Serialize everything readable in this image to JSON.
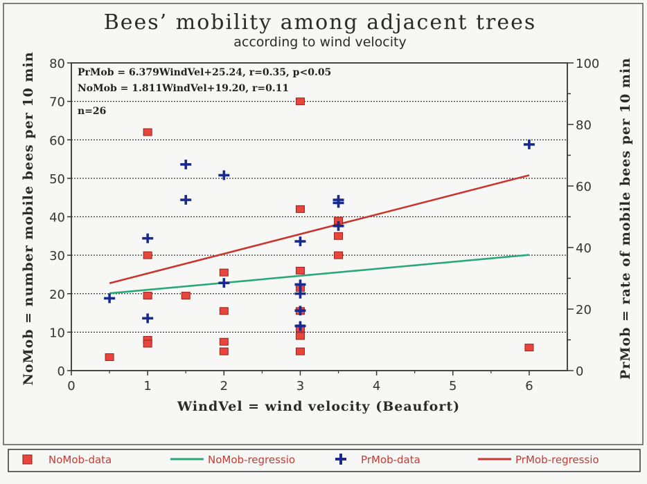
{
  "chart_data": {
    "type": "scatter",
    "title": "Bees’ mobility among adjacent trees",
    "subtitle": "according to wind velocity",
    "xlabel": "WindVel = wind velocity (Beaufort)",
    "ylabel_left": "NoMob = number mobile bees per 10 min",
    "ylabel_right": "PrMob = rate of mobile bees per 10 min",
    "xlim": [
      0,
      6.5
    ],
    "ylim_left": [
      0,
      80
    ],
    "ylim_right": [
      0,
      100
    ],
    "x_ticks": [
      "0",
      "1",
      "2",
      "3",
      "4",
      "5",
      "6"
    ],
    "y_ticks_left": [
      "0",
      "10",
      "20",
      "30",
      "40",
      "50",
      "60",
      "70",
      "80"
    ],
    "y_ticks_right": [
      "0",
      "20",
      "40",
      "60",
      "80",
      "100"
    ],
    "grid": "horizontal dotted",
    "annotations": [
      "PrMob = 6.379WindVel+25.24, r=0.35, p<0.05",
      "NoMob = 1.811WindVel+19.20, r=0.11",
      "n=26"
    ],
    "series": [
      {
        "name": "NoMob-data",
        "axis": "left",
        "marker": "square",
        "color": "#e8463c",
        "x": [
          0.5,
          1,
          1,
          1,
          1,
          1,
          1.5,
          2,
          2,
          2,
          2,
          3,
          3,
          3,
          3,
          3,
          3,
          3,
          3,
          3.5,
          3.5,
          3.5,
          6
        ],
        "y": [
          3.5,
          62,
          30,
          19.5,
          8,
          7,
          19.5,
          25.5,
          15.5,
          7.5,
          5,
          70,
          42,
          26,
          21.5,
          15.5,
          11,
          9,
          5,
          39,
          35,
          30,
          6
        ]
      },
      {
        "name": "NoMob-regressio",
        "axis": "left",
        "type": "line",
        "color": "#2aa878",
        "x": [
          0.5,
          6
        ],
        "y": [
          20.1,
          30.1
        ]
      },
      {
        "name": "PrMob-data",
        "axis": "right",
        "marker": "cross",
        "color": "#1a2a8c",
        "x": [
          0.5,
          1,
          1,
          1.5,
          1.5,
          2,
          2,
          3,
          3,
          3,
          3,
          3,
          3.5,
          3.5,
          3.5,
          6
        ],
        "y": [
          23.5,
          43,
          17,
          67,
          55.5,
          63.5,
          28.5,
          42,
          28,
          25,
          19.5,
          14.5,
          55.5,
          54.5,
          47,
          73.5
        ]
      },
      {
        "name": "PrMob-regressio",
        "axis": "right",
        "type": "line",
        "color": "#c8372f",
        "x": [
          0.5,
          6
        ],
        "y": [
          28.4,
          63.5
        ]
      }
    ],
    "legend_position": "bottom",
    "colors": {
      "nomob_data": "#e8463c",
      "nomob_reg": "#2aa878",
      "prmob_data": "#1a2a8c",
      "prmob_reg": "#c8372f"
    }
  }
}
